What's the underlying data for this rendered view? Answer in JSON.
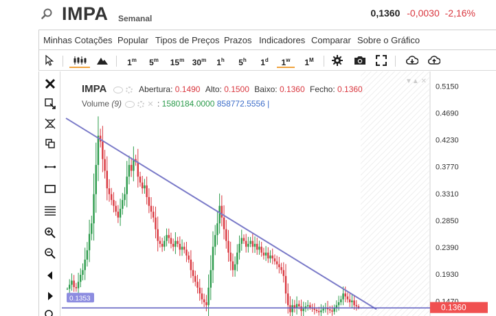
{
  "header": {
    "symbol": "IMPA",
    "period": "Semanal",
    "last": "0,1360",
    "change": "-0,0030",
    "change_pct": "-2,16%"
  },
  "menu": [
    "Minhas Cotações",
    "Popular",
    "Tipos de Preços",
    "Prazos",
    "Indicadores",
    "Comparar",
    "Sobre o Gráfico"
  ],
  "toolbar": {
    "intervals": [
      {
        "n": "1",
        "u": "m"
      },
      {
        "n": "5",
        "u": "m"
      },
      {
        "n": "15",
        "u": "m"
      },
      {
        "n": "30",
        "u": "m"
      },
      {
        "n": "1",
        "u": "h"
      },
      {
        "n": "5",
        "u": "h"
      },
      {
        "n": "1",
        "u": "d"
      },
      {
        "n": "1",
        "u": "w"
      },
      {
        "n": "1",
        "u": "M"
      }
    ],
    "active_interval": "1w",
    "icons": [
      "cursor-icon",
      "candlestick-icon",
      "mountain-icon",
      "settings-icon",
      "camera-icon",
      "fullscreen-icon",
      "download-icon",
      "upload-icon"
    ]
  },
  "side_tools": [
    "close-icon",
    "crosshair-icon",
    "eraser-icon",
    "copy-icon",
    "line-tool-icon",
    "rectangle-tool-icon",
    "fibonacci-icon",
    "zoom-in-icon",
    "zoom-out-icon",
    "scroll-left-icon",
    "scroll-right-icon",
    "magnify-icon"
  ],
  "legend": {
    "symbol": "IMPA",
    "open_label": "Abertura:",
    "open": "0.1490",
    "high_label": "Alto:",
    "high": "0.1500",
    "low_label": "Baixo:",
    "low": "0.1360",
    "close_label": "Fecho:",
    "close": "0.1360",
    "volume_label": "Volume",
    "volume_param": "(9)",
    "volume_value": "1580184.0000",
    "volume_ma": "858772.5556",
    "volume_sep": "|"
  },
  "chart_data": {
    "type": "line",
    "price_axis": [
      "0.5150",
      "0.4690",
      "0.4230",
      "0.3770",
      "0.3310",
      "0.2850",
      "0.2390",
      "0.1930",
      "0.1470"
    ],
    "y_range": [
      0.1215,
      0.54
    ],
    "last_price_label": "0.1360",
    "support_label": "0.1353",
    "support_level": 0.1353,
    "trendline": [
      {
        "x": 0,
        "y": 0.46
      },
      {
        "x": 1,
        "y": 0.133
      }
    ],
    "colors": {
      "up": "#2a9a4a",
      "down": "#d9363e",
      "line": "#7272c0",
      "last_bg": "#f05050",
      "support_bg": "#8c8ce0"
    },
    "close_series": [
      0.168,
      0.175,
      0.182,
      0.171,
      0.169,
      0.18,
      0.192,
      0.2,
      0.218,
      0.234,
      0.262,
      0.28,
      0.33,
      0.38,
      0.43,
      0.42,
      0.39,
      0.37,
      0.34,
      0.33,
      0.32,
      0.31,
      0.3,
      0.29,
      0.305,
      0.32,
      0.33,
      0.36,
      0.38,
      0.37,
      0.39,
      0.385,
      0.36,
      0.35,
      0.34,
      0.345,
      0.325,
      0.31,
      0.3,
      0.29,
      0.27,
      0.25,
      0.245,
      0.24,
      0.25,
      0.26,
      0.255,
      0.245,
      0.24,
      0.25,
      0.245,
      0.235,
      0.24,
      0.235,
      0.225,
      0.218,
      0.2,
      0.19,
      0.18,
      0.17,
      0.16,
      0.15,
      0.145,
      0.14,
      0.17,
      0.2,
      0.24,
      0.26,
      0.28,
      0.31,
      0.29,
      0.27,
      0.25,
      0.23,
      0.215,
      0.2,
      0.21,
      0.23,
      0.245,
      0.255,
      0.25,
      0.24,
      0.245,
      0.25,
      0.24,
      0.245,
      0.235,
      0.24,
      0.23,
      0.225,
      0.23,
      0.22,
      0.225,
      0.22,
      0.215,
      0.21,
      0.205,
      0.2,
      0.19,
      0.16,
      0.14,
      0.128,
      0.14,
      0.135,
      0.142,
      0.138,
      0.13,
      0.134,
      0.138,
      0.14,
      0.136,
      0.134,
      0.132,
      0.13,
      0.128,
      0.131,
      0.134,
      0.136,
      0.133,
      0.131,
      0.129,
      0.135,
      0.14,
      0.145,
      0.15,
      0.16,
      0.155,
      0.15,
      0.145,
      0.148,
      0.14,
      0.138,
      0.136
    ]
  }
}
